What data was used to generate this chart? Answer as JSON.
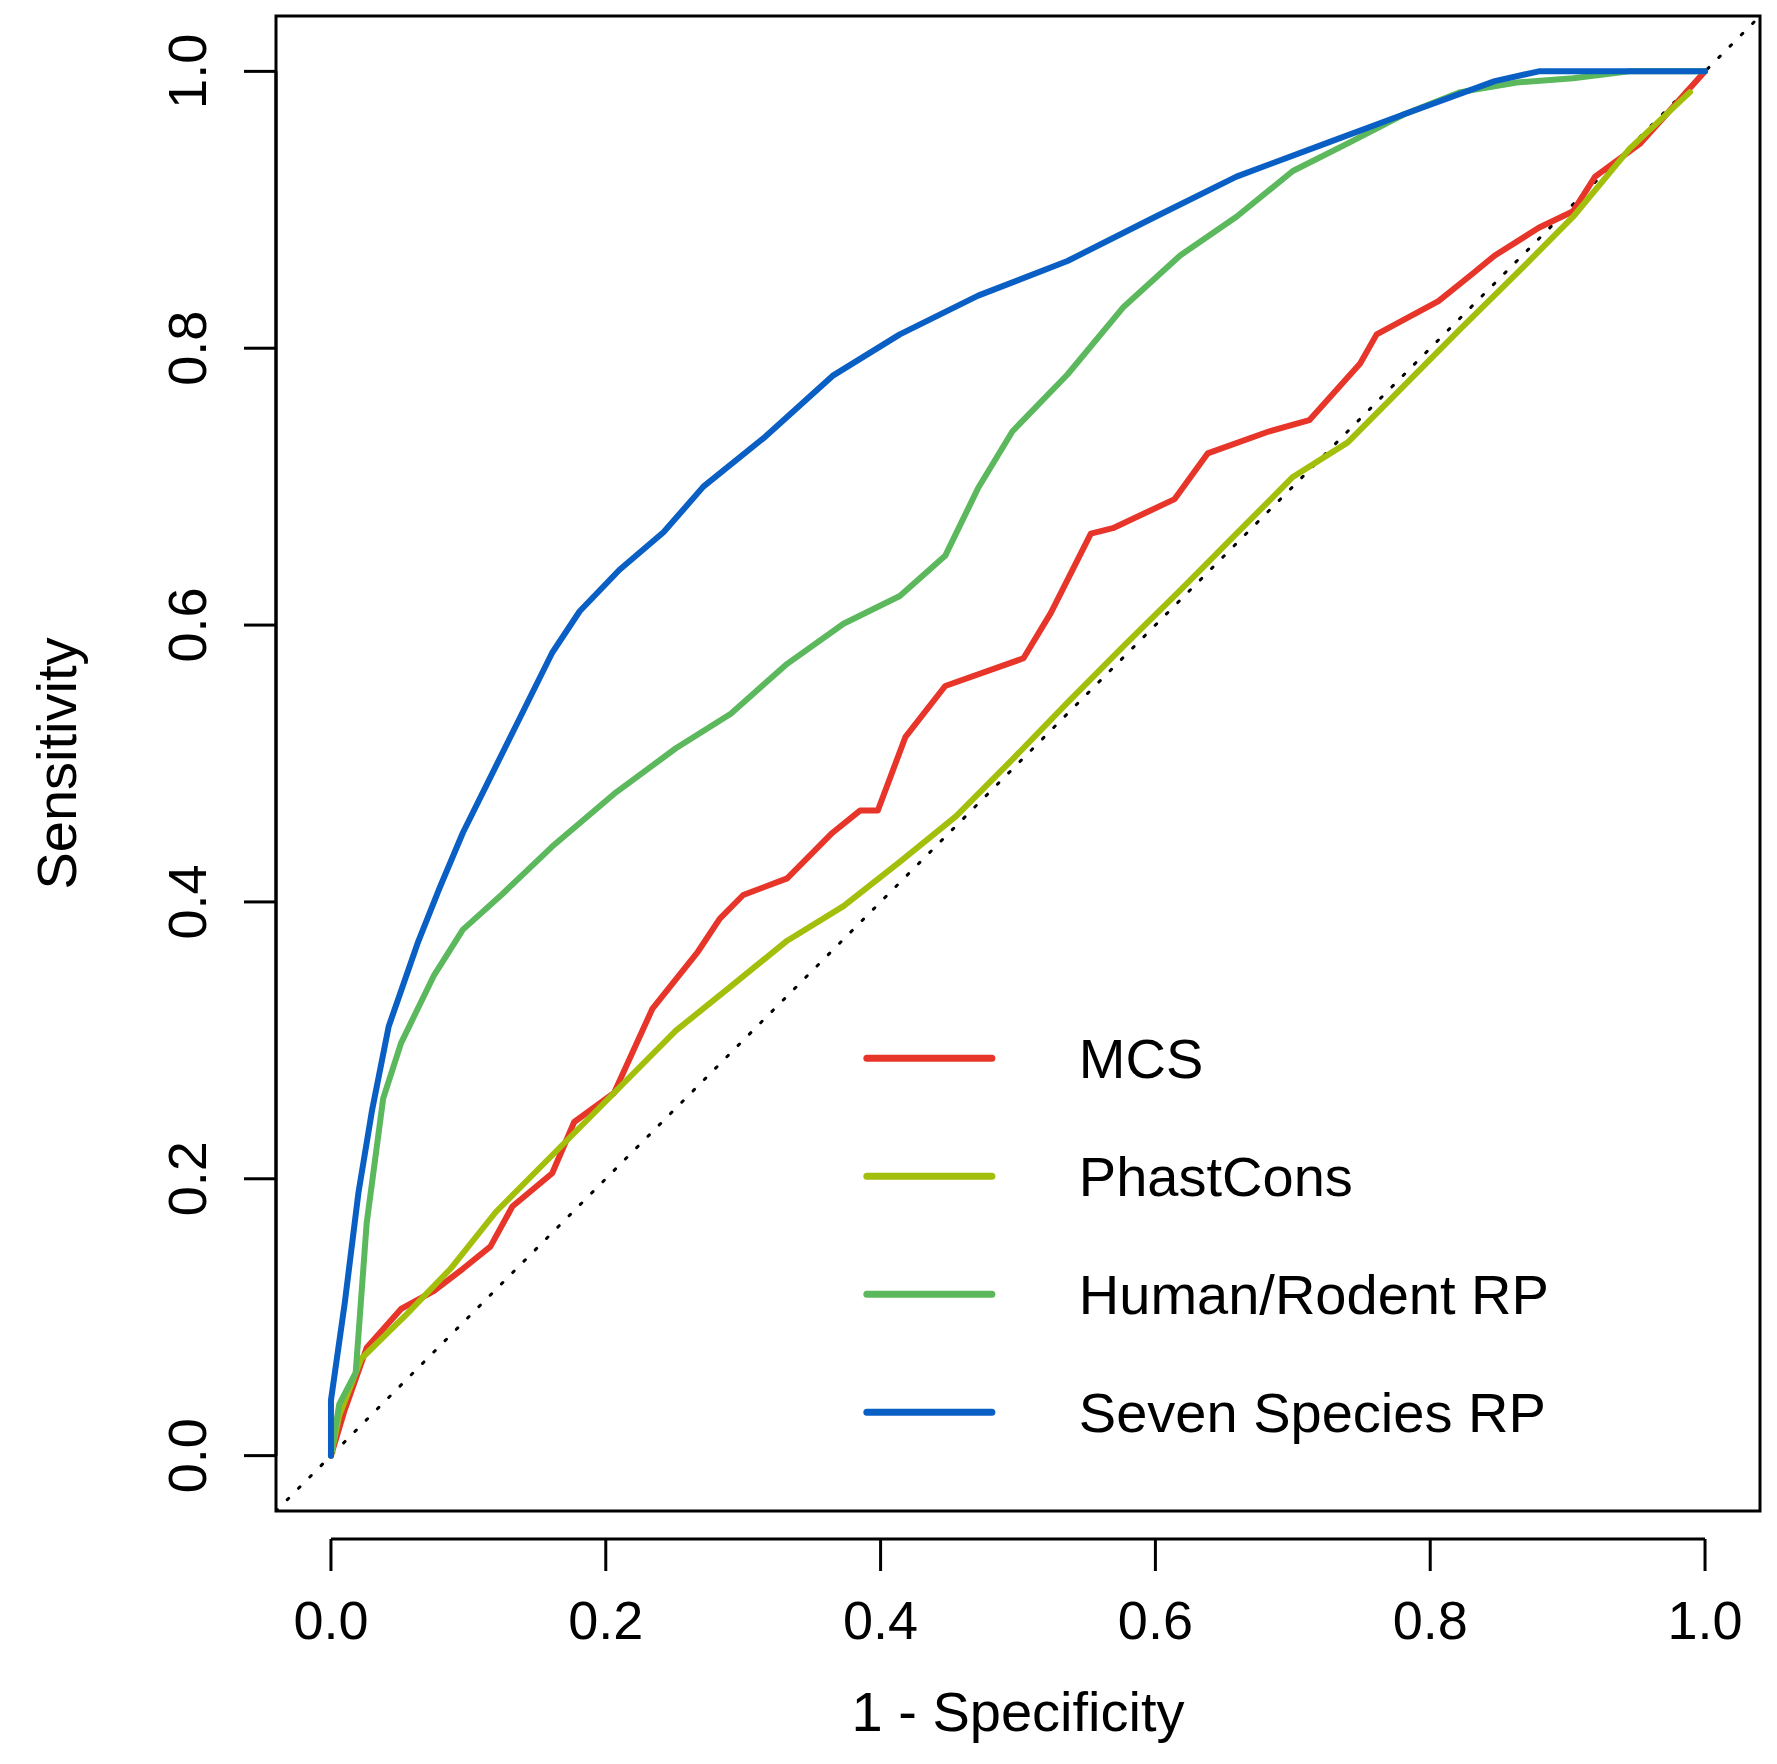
{
  "chart_data": {
    "type": "line",
    "xlabel": "1 -  Specificity",
    "ylabel": "Sensitivity",
    "xlim": [
      -0.04,
      1.04
    ],
    "ylim": [
      -0.04,
      1.04
    ],
    "xticks": [
      {
        "value": 0,
        "label": "0.0"
      },
      {
        "value": 0.2,
        "label": "0.2"
      },
      {
        "value": 0.4,
        "label": "0.4"
      },
      {
        "value": 0.6,
        "label": "0.6"
      },
      {
        "value": 0.8,
        "label": "0.8"
      },
      {
        "value": 1,
        "label": "1.0"
      }
    ],
    "yticks": [
      {
        "value": 0,
        "label": "0.0"
      },
      {
        "value": 0.2,
        "label": "0.2"
      },
      {
        "value": 0.4,
        "label": "0.4"
      },
      {
        "value": 0.6,
        "label": "0.6"
      },
      {
        "value": 0.8,
        "label": "0.8"
      },
      {
        "value": 1,
        "label": "1.0"
      }
    ],
    "grid": false,
    "legend": "bottom right",
    "line_style": "solid",
    "series": [
      {
        "name": "MCS",
        "color": "#e8352a",
        "x": [
          0,
          0.01,
          0.026,
          0.051,
          0.075,
          0.096,
          0.116,
          0.132,
          0.161,
          0.177,
          0.206,
          0.234,
          0.267,
          0.283,
          0.3,
          0.332,
          0.365,
          0.385,
          0.398,
          0.418,
          0.447,
          0.504,
          0.524,
          0.553,
          0.569,
          0.614,
          0.638,
          0.683,
          0.712,
          0.749,
          0.761,
          0.806,
          0.831,
          0.847,
          0.879,
          0.904,
          0.92,
          0.953,
          1
        ],
        "values": [
          0,
          0.033,
          0.078,
          0.106,
          0.119,
          0.135,
          0.151,
          0.18,
          0.204,
          0.241,
          0.262,
          0.323,
          0.364,
          0.388,
          0.405,
          0.417,
          0.45,
          0.466,
          0.466,
          0.519,
          0.556,
          0.576,
          0.609,
          0.666,
          0.67,
          0.691,
          0.724,
          0.74,
          0.748,
          0.789,
          0.81,
          0.834,
          0.854,
          0.867,
          0.887,
          0.899,
          0.924,
          0.948,
          1
        ]
      },
      {
        "name": "PhastCons",
        "color": "#a4bf0b",
        "x": [
          0,
          0.006,
          0.022,
          0.055,
          0.087,
          0.12,
          0.161,
          0.202,
          0.251,
          0.291,
          0.332,
          0.373,
          0.414,
          0.455,
          0.496,
          0.536,
          0.577,
          0.618,
          0.659,
          0.7,
          0.74,
          0.781,
          0.822,
          0.863,
          0.904,
          0.945,
          0.989
        ],
        "values": [
          0,
          0.029,
          0.07,
          0.102,
          0.135,
          0.176,
          0.217,
          0.258,
          0.307,
          0.339,
          0.372,
          0.397,
          0.429,
          0.462,
          0.503,
          0.544,
          0.585,
          0.625,
          0.666,
          0.707,
          0.732,
          0.773,
          0.814,
          0.854,
          0.895,
          0.944,
          0.985
        ]
      },
      {
        "name": "Human/Rodent RP",
        "color": "#5cb85c",
        "x": [
          0,
          0.006,
          0.018,
          0.026,
          0.038,
          0.051,
          0.075,
          0.096,
          0.124,
          0.161,
          0.206,
          0.251,
          0.291,
          0.332,
          0.373,
          0.414,
          0.447,
          0.471,
          0.496,
          0.536,
          0.577,
          0.618,
          0.659,
          0.7,
          0.74,
          0.781,
          0.822,
          0.863,
          0.904,
          0.945,
          1
        ],
        "values": [
          0,
          0.037,
          0.06,
          0.168,
          0.258,
          0.298,
          0.347,
          0.38,
          0.405,
          0.44,
          0.478,
          0.511,
          0.536,
          0.572,
          0.601,
          0.621,
          0.65,
          0.699,
          0.74,
          0.781,
          0.83,
          0.867,
          0.895,
          0.928,
          0.948,
          0.969,
          0.985,
          0.992,
          0.995,
          1,
          1
        ]
      },
      {
        "name": "Seven Species RP",
        "color": "#0a5fc4",
        "x": [
          0,
          0,
          0.01,
          0.02,
          0.03,
          0.042,
          0.063,
          0.079,
          0.096,
          0.116,
          0.136,
          0.161,
          0.181,
          0.21,
          0.242,
          0.271,
          0.316,
          0.365,
          0.414,
          0.471,
          0.536,
          0.6,
          0.659,
          0.724,
          0.781,
          0.847,
          0.879,
          1
        ],
        "values": [
          0,
          0.04,
          0.11,
          0.19,
          0.25,
          0.31,
          0.37,
          0.41,
          0.45,
          0.49,
          0.53,
          0.58,
          0.61,
          0.64,
          0.667,
          0.7,
          0.736,
          0.78,
          0.81,
          0.838,
          0.863,
          0.895,
          0.924,
          0.948,
          0.969,
          0.993,
          1,
          1
        ]
      },
      {
        "color": "#000000",
        "line_style": "dotted",
        "x": [
          -0.04,
          1.04
        ],
        "values": [
          -0.04,
          1.04
        ]
      }
    ]
  }
}
